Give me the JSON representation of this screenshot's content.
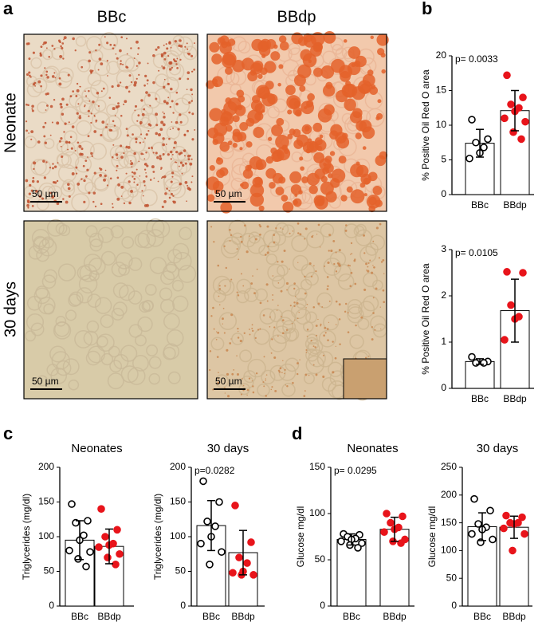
{
  "panel_a": {
    "label": "a",
    "columns": [
      "BBc",
      "BBdp"
    ],
    "rows": [
      "Neonate",
      "30 days"
    ],
    "scale_bar": "50 µm"
  },
  "panel_b": {
    "label": "b"
  },
  "panel_c": {
    "label": "c"
  },
  "panel_d": {
    "label": "d"
  },
  "chart_data": [
    {
      "type": "bar",
      "ylabel": "% Positive Oil Red O area",
      "annotation": "p= 0.0033",
      "categories": [
        "BBc",
        "BBdp"
      ],
      "values": [
        7.4,
        12.1
      ],
      "errors": [
        2.0,
        2.9
      ],
      "points": [
        [
          10.8,
          8.0,
          7.5,
          6.8,
          6.0,
          5.2
        ],
        [
          17.2,
          14.0,
          13.0,
          12.5,
          12.0,
          11.0,
          10.5,
          9.0,
          8.0
        ]
      ],
      "point_colors": [
        "#ffffff",
        "#e8141b"
      ],
      "ylim": [
        0,
        20
      ],
      "yticks": [
        0,
        5,
        10,
        15,
        20
      ]
    },
    {
      "type": "bar",
      "ylabel": "% Positive Oil Red O area",
      "annotation": "p= 0.0105",
      "categories": [
        "BBc",
        "BBdp"
      ],
      "values": [
        0.58,
        1.68
      ],
      "errors": [
        0.06,
        0.68
      ],
      "points": [
        [
          0.68,
          0.58,
          0.55,
          0.55
        ],
        [
          2.52,
          2.5,
          1.8,
          1.55,
          1.5,
          1.05
        ]
      ],
      "point_colors": [
        "#ffffff",
        "#e8141b"
      ],
      "ylim": [
        0,
        3
      ],
      "yticks": [
        0,
        1,
        2,
        3
      ]
    },
    {
      "type": "bar",
      "title": "Neonates",
      "ylabel": "Triglycerides (mg/dl)",
      "categories": [
        "BBc",
        "BBdp"
      ],
      "values": [
        95,
        86
      ],
      "errors": [
        28,
        25
      ],
      "points": [
        [
          147,
          123,
          120,
          102,
          95,
          80,
          78,
          68,
          57
        ],
        [
          140,
          110,
          100,
          90,
          88,
          85,
          75,
          70,
          60
        ]
      ],
      "point_colors": [
        "#ffffff",
        "#e8141b"
      ],
      "ylim": [
        0,
        200
      ],
      "yticks": [
        0,
        50,
        100,
        150,
        200
      ]
    },
    {
      "type": "bar",
      "title": "30 days",
      "ylabel": "Triglycerides (mg/dl)",
      "annotation": "p=0.0282",
      "categories": [
        "BBc",
        "BBdp"
      ],
      "values": [
        116,
        77
      ],
      "errors": [
        36,
        32
      ],
      "points": [
        [
          180,
          150,
          122,
          115,
          100,
          90,
          78,
          60
        ],
        [
          145,
          92,
          70,
          62,
          50,
          48,
          45,
          45
        ]
      ],
      "point_colors": [
        "#ffffff",
        "#e8141b"
      ],
      "ylim": [
        0,
        200
      ],
      "yticks": [
        0,
        50,
        100,
        150,
        200
      ]
    },
    {
      "type": "bar",
      "title": "Neonates",
      "ylabel": "Glucose mg/dl",
      "annotation": "p= 0.0295",
      "categories": [
        "BBc",
        "BBdp"
      ],
      "values": [
        72,
        83
      ],
      "errors": [
        6,
        13
      ],
      "points": [
        [
          78,
          77,
          75,
          73,
          72,
          70,
          68,
          66,
          63
        ],
        [
          100,
          97,
          90,
          85,
          83,
          80,
          72,
          70,
          68
        ]
      ],
      "point_colors": [
        "#ffffff",
        "#e8141b"
      ],
      "ylim": [
        0,
        150
      ],
      "yticks": [
        0,
        50,
        100,
        150
      ]
    },
    {
      "type": "bar",
      "title": "30 days",
      "ylabel": "Glucose mg/dl",
      "categories": [
        "BBc",
        "BBdp"
      ],
      "values": [
        143,
        142
      ],
      "errors": [
        25,
        20
      ],
      "points": [
        [
          193,
          172,
          148,
          142,
          138,
          130,
          120,
          115
        ],
        [
          163,
          160,
          150,
          150,
          148,
          140,
          130,
          100
        ]
      ],
      "point_colors": [
        "#ffffff",
        "#e8141b"
      ],
      "ylim": [
        0,
        250
      ],
      "yticks": [
        0,
        50,
        100,
        150,
        200,
        250
      ]
    }
  ]
}
